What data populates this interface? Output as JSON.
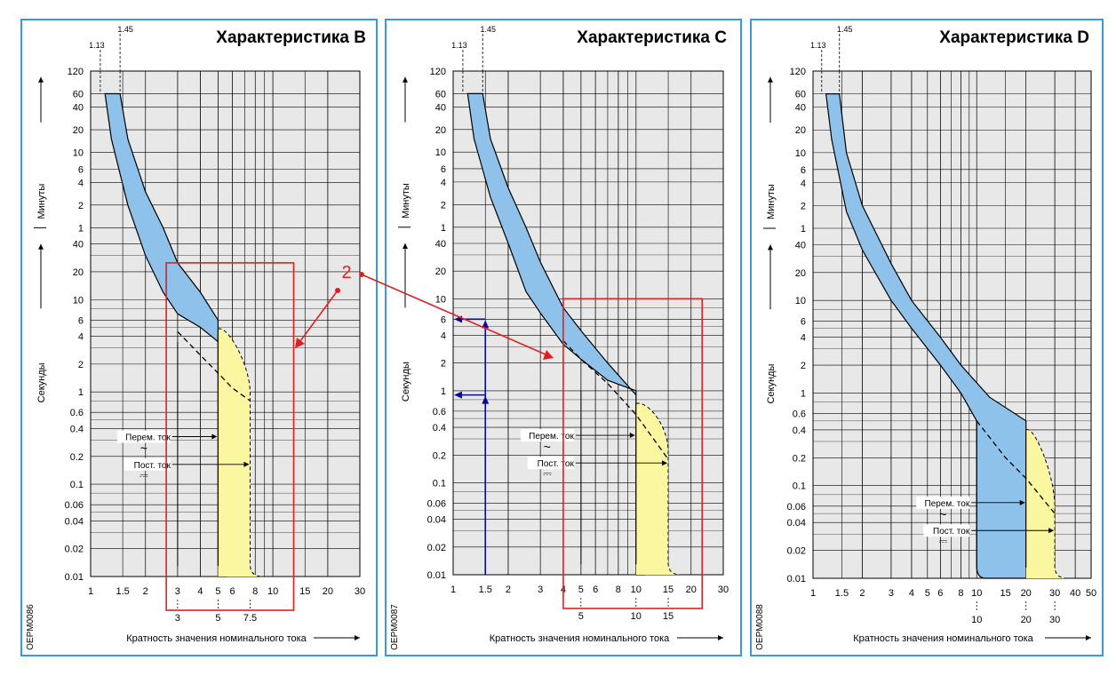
{
  "chart_data": [
    {
      "type": "area",
      "title": "Характеристика B",
      "xlabel": "Кратность значения номинального тока",
      "ylabel_seconds": "Секунды",
      "ylabel_minutes": "Минуты",
      "code": "OEPM0086",
      "x_scale": "log",
      "xlim": [
        1,
        30
      ],
      "x_ticks": [
        1,
        1.5,
        2,
        3,
        4,
        5,
        6,
        8,
        10,
        15,
        20,
        30
      ],
      "x_tick_labels": [
        "1",
        "1.5",
        "2",
        "3",
        "4",
        "5",
        "6",
        "8",
        "10",
        "15",
        "20",
        "30"
      ],
      "extra_x_labels": [
        "3",
        "5",
        "7.5"
      ],
      "extra_x_values": [
        3,
        5,
        7.5
      ],
      "top_labels": [
        "1.13",
        "1.45"
      ],
      "top_values": [
        1.13,
        1.45
      ],
      "ac_label": "Перем. ток",
      "dc_label": "Пост. ток",
      "ac_symbol": "~",
      "dc_symbol": "⎓",
      "ac_ratio": 5,
      "dc_ratio": 7.5,
      "magnetic_start": 3,
      "upper_curve": [
        [
          1.45,
          3600
        ],
        [
          1.6,
          900
        ],
        [
          2,
          180
        ],
        [
          2.5,
          60
        ],
        [
          3,
          25
        ],
        [
          4,
          12
        ],
        [
          5,
          6
        ]
      ],
      "lower_curve": [
        [
          1.2,
          3600
        ],
        [
          1.3,
          900
        ],
        [
          1.6,
          120
        ],
        [
          2,
          30
        ],
        [
          2.5,
          12
        ],
        [
          3,
          7
        ],
        [
          4,
          5
        ],
        [
          5,
          3.5
        ]
      ],
      "dashed_curve": [
        [
          3,
          4.5
        ],
        [
          4,
          2.5
        ],
        [
          5,
          1.6
        ],
        [
          6,
          1.1
        ],
        [
          7.5,
          0.8
        ]
      ],
      "box": {
        "x0": 2.6,
        "x1": 13,
        "y0": 25,
        "ymin": "below"
      },
      "grid": true
    },
    {
      "type": "area",
      "title": "Характеристика C",
      "xlabel": "Кратность значения номинального тока",
      "ylabel_seconds": "Секунды",
      "ylabel_minutes": "Минуты",
      "code": "OEPM0087",
      "x_scale": "log",
      "xlim": [
        1,
        30
      ],
      "x_ticks": [
        1,
        1.5,
        2,
        3,
        4,
        5,
        6,
        8,
        10,
        15,
        20,
        30
      ],
      "x_tick_labels": [
        "1",
        "1.5",
        "2",
        "3",
        "4",
        "5",
        "6",
        "8",
        "10",
        "15",
        "20",
        "30"
      ],
      "extra_x_labels": [
        "5",
        "10",
        "15"
      ],
      "extra_x_values": [
        5,
        10,
        15
      ],
      "top_labels": [
        "1.13",
        "1.45"
      ],
      "top_values": [
        1.13,
        1.45
      ],
      "ac_label": "Перем. ток",
      "dc_label": "Пост. ток",
      "ac_symbol": "~",
      "dc_symbol": "⎓",
      "ac_ratio": 10,
      "dc_ratio": 15,
      "magnetic_start": 5,
      "upper_curve": [
        [
          1.45,
          3600
        ],
        [
          1.6,
          900
        ],
        [
          2,
          200
        ],
        [
          2.5,
          60
        ],
        [
          3,
          25
        ],
        [
          4,
          8
        ],
        [
          5,
          4.5
        ],
        [
          7,
          2
        ],
        [
          10,
          0.9
        ]
      ],
      "lower_curve": [
        [
          1.2,
          3600
        ],
        [
          1.3,
          900
        ],
        [
          1.6,
          150
        ],
        [
          2,
          40
        ],
        [
          2.5,
          12
        ],
        [
          3,
          7
        ],
        [
          4,
          3.2
        ],
        [
          5,
          2.2
        ],
        [
          7,
          1.3
        ],
        [
          10,
          1
        ]
      ],
      "dashed_curve": [
        [
          4,
          3.5
        ],
        [
          5,
          2.2
        ],
        [
          7,
          1.2
        ],
        [
          10,
          0.55
        ],
        [
          15,
          0.18
        ]
      ],
      "box": {
        "x0": 4,
        "x1": 23,
        "y0": 10,
        "ymin": "below"
      },
      "example_x": 1.5,
      "example_points": [
        6,
        0.9
      ],
      "grid": true
    },
    {
      "type": "area",
      "title": "Характеристика D",
      "xlabel": "Кратность значения номинального тока",
      "ylabel_seconds": "Секунды",
      "ylabel_minutes": "Минуты",
      "code": "OEPM0088",
      "x_scale": "log",
      "xlim": [
        1,
        50
      ],
      "x_ticks": [
        1,
        1.5,
        2,
        3,
        4,
        5,
        6,
        8,
        10,
        15,
        20,
        30,
        40,
        50
      ],
      "x_tick_labels": [
        "1",
        "1.5",
        "2",
        "3",
        "4",
        "5",
        "6",
        "8",
        "10",
        "15",
        "20",
        "30",
        "40",
        "50"
      ],
      "extra_x_labels": [
        "10",
        "20",
        "30"
      ],
      "extra_x_values": [
        10,
        20,
        30
      ],
      "top_labels": [
        "1.13",
        "1.45"
      ],
      "top_values": [
        1.13,
        1.45
      ],
      "ac_label": "Перем. ток",
      "dc_label": "Пост. ток",
      "ac_symbol": "~",
      "dc_symbol": "⎓",
      "ac_ratio": 20,
      "dc_ratio": 30,
      "magnetic_start": 10,
      "upper_curve": [
        [
          1.45,
          3600
        ],
        [
          1.6,
          600
        ],
        [
          2,
          120
        ],
        [
          3,
          25
        ],
        [
          4,
          10
        ],
        [
          6,
          4
        ],
        [
          8,
          2
        ],
        [
          12,
          0.9
        ],
        [
          20,
          0.5
        ]
      ],
      "lower_curve": [
        [
          1.2,
          3600
        ],
        [
          1.3,
          900
        ],
        [
          1.6,
          100
        ],
        [
          2,
          35
        ],
        [
          3,
          10
        ],
        [
          4,
          5
        ],
        [
          6,
          2
        ],
        [
          8,
          1
        ],
        [
          10,
          0.5
        ]
      ],
      "dashed_curve": [
        [
          10,
          0.5
        ],
        [
          15,
          0.2
        ],
        [
          20,
          0.12
        ],
        [
          30,
          0.05
        ]
      ],
      "grid": true
    }
  ],
  "y_ticks": [
    {
      "label": "0.01",
      "s": 0.01
    },
    {
      "label": "0.02",
      "s": 0.02
    },
    {
      "label": "0.04",
      "s": 0.04
    },
    {
      "label": "0.06",
      "s": 0.06
    },
    {
      "label": "0.1",
      "s": 0.1
    },
    {
      "label": "0.2",
      "s": 0.2
    },
    {
      "label": "0.4",
      "s": 0.4
    },
    {
      "label": "0.6",
      "s": 0.6
    },
    {
      "label": "1",
      "s": 1
    },
    {
      "label": "2",
      "s": 2
    },
    {
      "label": "4",
      "s": 4
    },
    {
      "label": "6",
      "s": 6
    },
    {
      "label": "10",
      "s": 10
    },
    {
      "label": "20",
      "s": 20
    },
    {
      "label": "40",
      "s": 40
    },
    {
      "label": "1",
      "s": 60
    },
    {
      "label": "2",
      "s": 120
    },
    {
      "label": "4",
      "s": 240
    },
    {
      "label": "6",
      "s": 360
    },
    {
      "label": "10",
      "s": 600
    },
    {
      "label": "20",
      "s": 1200
    },
    {
      "label": "40",
      "s": 2400
    },
    {
      "label": "60",
      "s": 3600
    },
    {
      "label": "120",
      "s": 7200
    }
  ],
  "annotation_label": "2",
  "colors": {
    "panel_bg": "#e8e8e8",
    "panel_border": "#3a9ad9",
    "blue_band": "#8ec2ea",
    "yellow_band": "#fbf7a0",
    "red": "#e02020",
    "navy": "#0a0a9a"
  }
}
